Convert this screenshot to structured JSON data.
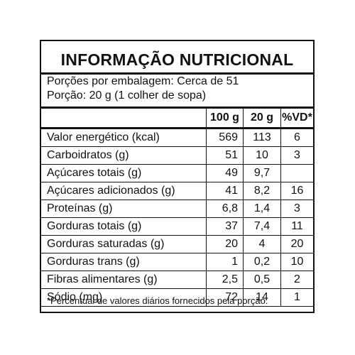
{
  "title": "INFORMAÇÃO NUTRICIONAL",
  "servings_per_package": "Porções por embalagem: Cerca de 51",
  "serving_size": "Porção: 20 g (1 colher de sopa)",
  "columns": [
    "",
    "100 g",
    "20 g",
    "%VD*"
  ],
  "rows": [
    {
      "label": "Valor energético (kcal)",
      "indent": 0,
      "per100": "569",
      "per20": "113",
      "vd": "6"
    },
    {
      "label": "Carboidratos (g)",
      "indent": 0,
      "per100": "51",
      "per20": "10",
      "vd": "3"
    },
    {
      "label": "Açúcares totais (g)",
      "indent": 1,
      "per100": "49",
      "per20": "9,7",
      "vd": ""
    },
    {
      "label": "Açúcares adicionados (g)",
      "indent": 2,
      "per100": "41",
      "per20": "8,2",
      "vd": "16"
    },
    {
      "label": "Proteínas (g)",
      "indent": 0,
      "per100": "6,8",
      "per20": "1,4",
      "vd": "3"
    },
    {
      "label": "Gorduras totais (g)",
      "indent": 0,
      "per100": "37",
      "per20": "7,4",
      "vd": "11"
    },
    {
      "label": "Gorduras saturadas (g)",
      "indent": 1,
      "per100": "20",
      "per20": "4",
      "vd": "20"
    },
    {
      "label": "Gorduras trans (g)",
      "indent": 1,
      "per100": "1",
      "per20": "0,2",
      "vd": "10"
    },
    {
      "label": "Fibras alimentares (g)",
      "indent": 0,
      "per100": "2,5",
      "per20": "0,5",
      "vd": "2"
    },
    {
      "label": "Sódio (mg)",
      "indent": 0,
      "per100": "72",
      "per20": "14",
      "vd": "1"
    }
  ],
  "footnote": "*Percentual de valores diários fornecidos pela porção."
}
